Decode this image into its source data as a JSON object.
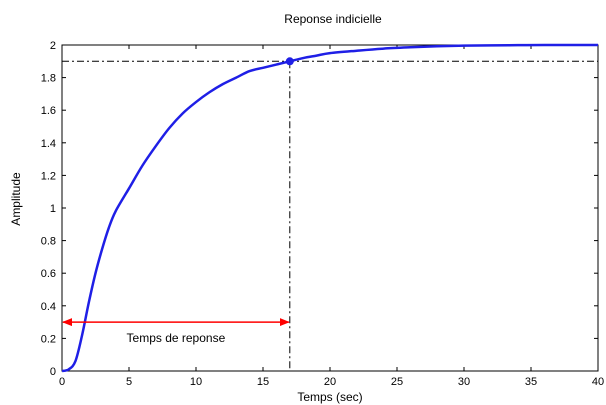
{
  "chart_data": {
    "type": "line",
    "title": "Reponse indicielle",
    "xlabel": "Temps (sec)",
    "ylabel": "Amplitude",
    "xlim": [
      0,
      40
    ],
    "ylim": [
      0,
      2
    ],
    "xticks": [
      0,
      5,
      10,
      15,
      20,
      25,
      30,
      35,
      40
    ],
    "yticks": [
      0,
      0.2,
      0.4,
      0.6,
      0.8,
      1,
      1.2,
      1.4,
      1.6,
      1.8,
      2
    ],
    "xtick_labels": [
      "0",
      "5",
      "10",
      "15",
      "20",
      "25",
      "30",
      "35",
      "40"
    ],
    "ytick_labels": [
      "0",
      "0.2",
      "0.4",
      "0.6",
      "0.8",
      "1",
      "1.2",
      "1.4",
      "1.6",
      "1.8",
      "2"
    ],
    "grid": false,
    "series": [
      {
        "color": "#1f1fe6",
        "x": [
          0,
          0.5,
          1,
          1.5,
          2,
          2.5,
          3,
          3.5,
          4,
          5,
          6,
          7,
          8,
          9,
          10,
          11,
          12,
          13,
          14,
          15,
          16,
          17,
          18,
          19,
          20,
          22,
          24,
          26,
          28,
          30,
          32,
          34,
          36,
          38,
          40
        ],
        "y": [
          0,
          0.01,
          0.06,
          0.22,
          0.42,
          0.6,
          0.75,
          0.88,
          0.98,
          1.12,
          1.26,
          1.38,
          1.49,
          1.58,
          1.65,
          1.71,
          1.76,
          1.8,
          1.84,
          1.86,
          1.88,
          1.9,
          1.92,
          1.935,
          1.95,
          1.965,
          1.978,
          1.986,
          1.992,
          1.996,
          1.998,
          1.999,
          2.0,
          2.0,
          2.0
        ]
      }
    ],
    "reference": {
      "level": 1.9,
      "time": 17,
      "marker_color": "#1f1fe6",
      "line_style": "dash-dot"
    },
    "annotation": {
      "text": "Temps de reponse",
      "y": 0.3,
      "x_start": 0,
      "x_end": 17,
      "color": "#ff0000"
    }
  }
}
